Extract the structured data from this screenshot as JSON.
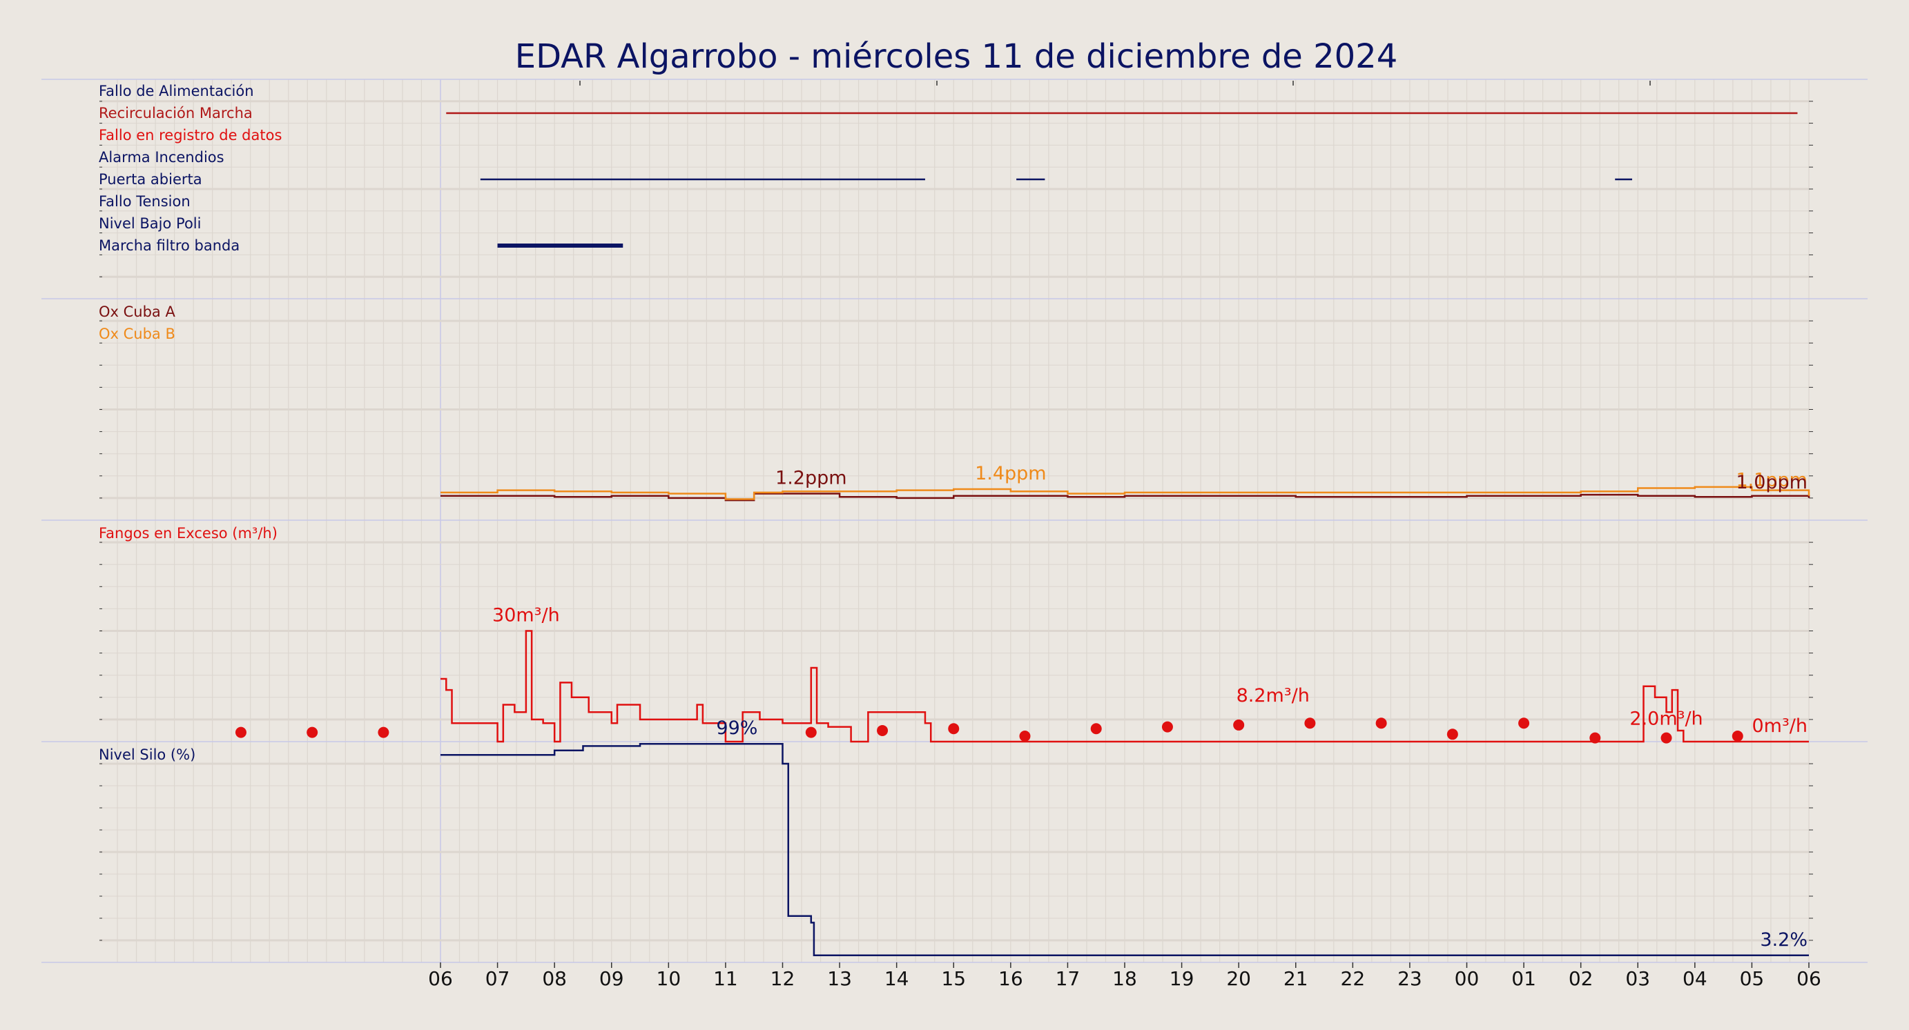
{
  "title": "EDAR Algarrobo   -   miércoles 11 de diciembre de 2024",
  "colors": {
    "background": "#ebe7e1",
    "navy": "#0b1463",
    "dark_red": "#7a1010",
    "red": "#e01010",
    "orange": "#ef8a1a",
    "grid": "#dcd6cf",
    "separator": "#c8c8e8"
  },
  "chart_data": [
    {
      "type": "line",
      "panel": "events",
      "x_axis": "hour",
      "series": [
        {
          "name": "Fallo de Alimentación",
          "color": "#0b1463",
          "segments": []
        },
        {
          "name": "Recirculación Marcha",
          "color": "#b01818",
          "segments": [
            [
              6.1,
              29.8
            ]
          ]
        },
        {
          "name": "Fallo en registro de datos",
          "color": "#e01010",
          "segments": []
        },
        {
          "name": "Alarma Incendios",
          "color": "#0b1463",
          "segments": []
        },
        {
          "name": "Puerta abierta",
          "color": "#0b1463",
          "segments": [
            [
              6.7,
              14.5
            ],
            [
              16.1,
              16.6
            ],
            [
              26.6,
              26.9
            ]
          ]
        },
        {
          "name": "Fallo Tension",
          "color": "#0b1463",
          "segments": []
        },
        {
          "name": "Nivel Bajo Poli",
          "color": "#0b1463",
          "segments": []
        },
        {
          "name": "Marcha filtro banda",
          "color": "#0b1463",
          "segments": [
            [
              7.0,
              9.2
            ]
          ],
          "bold": true
        }
      ]
    },
    {
      "type": "line",
      "panel": "oxygen",
      "x_axis": "hour",
      "ylim": [
        0,
        10
      ],
      "series": [
        {
          "name": "Ox Cuba A",
          "color": "#7a1010",
          "x": [
            6,
            7,
            8,
            9,
            10,
            11,
            11.5,
            12,
            13,
            14,
            15,
            16,
            17,
            18,
            19,
            20,
            21,
            22,
            23,
            24,
            25,
            26,
            27,
            28,
            29,
            30
          ],
          "y": [
            1.1,
            1.1,
            1.05,
            1.1,
            1.0,
            0.9,
            1.2,
            1.2,
            1.05,
            1.0,
            1.1,
            1.1,
            1.05,
            1.1,
            1.1,
            1.1,
            1.05,
            1.05,
            1.05,
            1.1,
            1.1,
            1.15,
            1.1,
            1.05,
            1.1,
            1.0
          ]
        },
        {
          "name": "Ox Cuba B",
          "color": "#ef8a1a",
          "x": [
            6,
            7,
            8,
            9,
            10,
            11,
            11.5,
            12,
            13,
            14,
            15,
            16,
            17,
            18,
            19,
            20,
            21,
            22,
            23,
            24,
            25,
            26,
            27,
            28,
            29,
            30
          ],
          "y": [
            1.25,
            1.35,
            1.3,
            1.25,
            1.2,
            0.95,
            1.25,
            1.3,
            1.3,
            1.35,
            1.4,
            1.3,
            1.2,
            1.25,
            1.25,
            1.25,
            1.25,
            1.25,
            1.25,
            1.25,
            1.25,
            1.3,
            1.45,
            1.5,
            1.35,
            1.1
          ]
        }
      ],
      "annotations": [
        {
          "text": "1.2ppm",
          "color": "#7a1010",
          "x": 12.5,
          "y": 1.2
        },
        {
          "text": "1.4ppm",
          "color": "#ef8a1a",
          "x": 16.0,
          "y": 1.4
        },
        {
          "text": "1.1ppm",
          "color": "#ef8a1a",
          "x": 30,
          "y": 1.1
        },
        {
          "text": "1.0ppm",
          "color": "#7a1010",
          "x": 30,
          "y": 1.0
        }
      ]
    },
    {
      "type": "line",
      "panel": "fangos",
      "x_axis": "hour",
      "ylim": [
        0,
        60
      ],
      "series": [
        {
          "name": "Fangos en Exceso (m³/h)",
          "color": "#e01010",
          "x": [
            6,
            6.1,
            6.2,
            7.0,
            7.1,
            7.3,
            7.5,
            7.6,
            7.8,
            8.0,
            8.1,
            8.3,
            8.6,
            9.0,
            9.1,
            9.5,
            10.5,
            10.6,
            11.0,
            11.3,
            11.6,
            12.0,
            12.5,
            12.6,
            12.8,
            13.2,
            13.5,
            14.0,
            14.5,
            14.6,
            20.0,
            27.0,
            27.1,
            27.3,
            27.5,
            27.6,
            27.7,
            27.8,
            30.0
          ],
          "y": [
            17,
            14,
            5,
            0,
            10,
            8,
            30,
            6,
            5,
            0,
            16,
            12,
            8,
            5,
            10,
            6,
            10,
            5,
            0,
            8,
            6,
            5,
            20,
            5,
            4,
            0,
            8,
            8,
            5,
            0,
            0,
            0,
            15,
            12,
            8,
            14,
            3,
            0,
            0
          ]
        },
        {
          "name": "dots",
          "color": "#e01010",
          "dots": true,
          "x": [
            2.5,
            3.75,
            5.0,
            12.5,
            13.75,
            15.0,
            16.25,
            17.5,
            18.75,
            20.0,
            21.25,
            22.5,
            23.75,
            25.0,
            26.25,
            27.5,
            28.75
          ],
          "y": [
            2.5,
            2.5,
            2.5,
            2.5,
            3.0,
            3.5,
            1.5,
            3.5,
            4.0,
            4.5,
            5.0,
            5.0,
            2.0,
            5.0,
            1.0,
            1.0,
            1.5
          ]
        }
      ],
      "annotations": [
        {
          "text": "30m³/h",
          "color": "#e01010",
          "x": 7.5,
          "y": 30
        },
        {
          "text": "8.2m³/h",
          "color": "#e01010",
          "x": 20.6,
          "y": 8.2
        },
        {
          "text": "2.0m³/h",
          "color": "#e01010",
          "x": 27.5,
          "y": 2.0
        },
        {
          "text": "0m³/h",
          "color": "#e01010",
          "x": 29.3,
          "y": 0
        }
      ]
    },
    {
      "type": "line",
      "panel": "silo",
      "x_axis": "hour",
      "ylim": [
        0,
        100
      ],
      "series": [
        {
          "name": "Nivel Silo (%)",
          "color": "#0b1463",
          "x": [
            6,
            7,
            8,
            8.5,
            9.5,
            11.2,
            11.9,
            12.0,
            12.1,
            12.3,
            12.5,
            12.55,
            30.0
          ],
          "y": [
            94,
            94,
            96,
            98,
            99,
            99,
            99,
            90,
            21,
            21,
            18,
            3.2,
            3.2
          ]
        }
      ],
      "annotations": [
        {
          "text": "99%",
          "color": "#0b1463",
          "x": 11.2,
          "y": 99
        },
        {
          "text": "3.2%",
          "color": "#0b1463",
          "x": 30,
          "y": 3.2
        }
      ]
    }
  ],
  "x_ticks": [
    "06",
    "07",
    "08",
    "09",
    "10",
    "11",
    "12",
    "13",
    "14",
    "15",
    "16",
    "17",
    "18",
    "19",
    "20",
    "21",
    "22",
    "23",
    "00",
    "01",
    "02",
    "03",
    "04",
    "05",
    "06"
  ]
}
